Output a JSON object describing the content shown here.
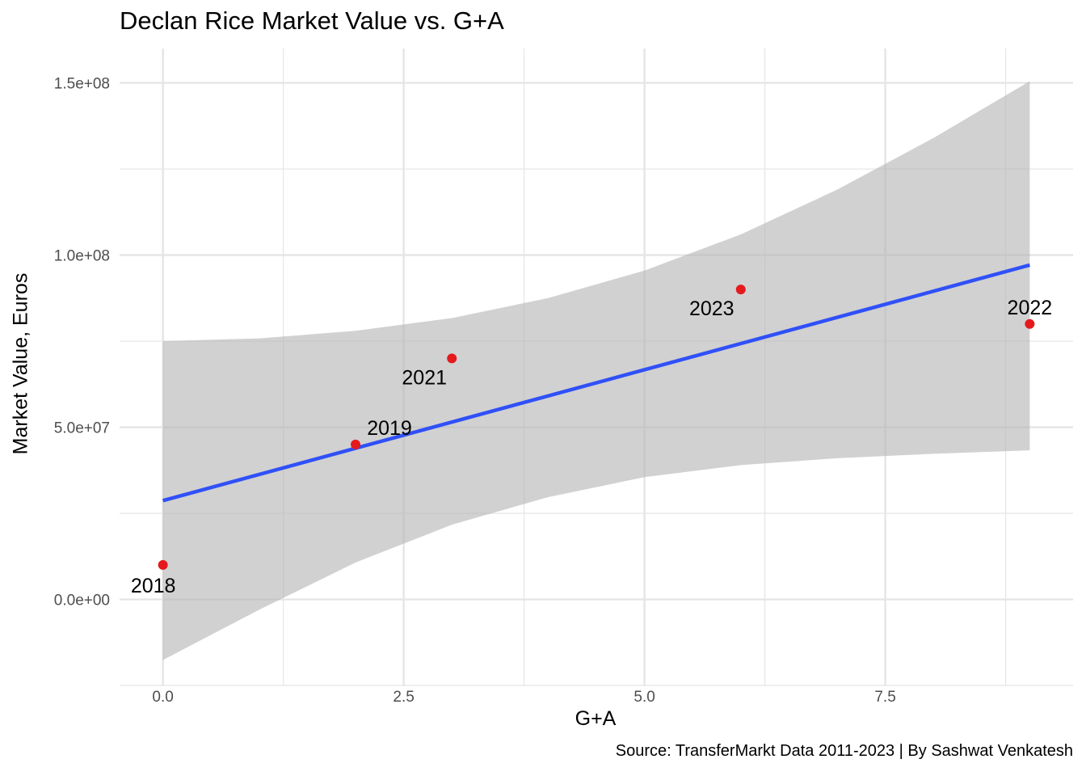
{
  "chart_data": {
    "type": "scatter",
    "title": "Declan Rice Market Value vs. G+A",
    "caption": "Source: TransferMarkt Data 2011-2023 | By Sashwat Venkatesh",
    "xlabel": "G+A",
    "ylabel": "Market Value, Euros",
    "xlim": [
      -0.45,
      9.45
    ],
    "ylim": [
      -25000000,
      160000000
    ],
    "x_ticks": [
      0.0,
      2.5,
      5.0,
      7.5
    ],
    "x_tick_labels": [
      "0.0",
      "2.5",
      "5.0",
      "7.5"
    ],
    "y_ticks": [
      0,
      50000000,
      100000000,
      150000000
    ],
    "y_tick_labels": [
      "0.0e+00",
      "5.0e+07",
      "1.0e+08",
      "1.5e+08"
    ],
    "grid": true,
    "points": [
      {
        "label": "2018",
        "x": 0,
        "y": 10000000
      },
      {
        "label": "2019",
        "x": 2,
        "y": 45000000
      },
      {
        "label": "2021",
        "x": 3,
        "y": 70000000
      },
      {
        "label": "2023",
        "x": 6,
        "y": 90000000
      },
      {
        "label": "2022",
        "x": 9,
        "y": 80000000
      }
    ],
    "regression_line": {
      "x": [
        0,
        9
      ],
      "y": [
        28700000,
        97100000
      ]
    },
    "confidence_band": {
      "x": [
        0,
        1,
        2,
        3,
        4,
        5,
        6,
        7,
        8,
        9
      ],
      "upper": [
        75000000,
        75800000,
        78000000,
        81700000,
        87500000,
        95500000,
        106000000,
        119000000,
        134000000,
        150500000
      ],
      "lower": [
        -17600000,
        -3000000,
        10700000,
        21700000,
        29700000,
        35500000,
        39000000,
        41000000,
        42300000,
        43300000
      ]
    },
    "colors": {
      "point": "#e41a1c",
      "line": "#3050f8",
      "band": "#b3b3b3",
      "grid": "#e5e5e5"
    }
  }
}
